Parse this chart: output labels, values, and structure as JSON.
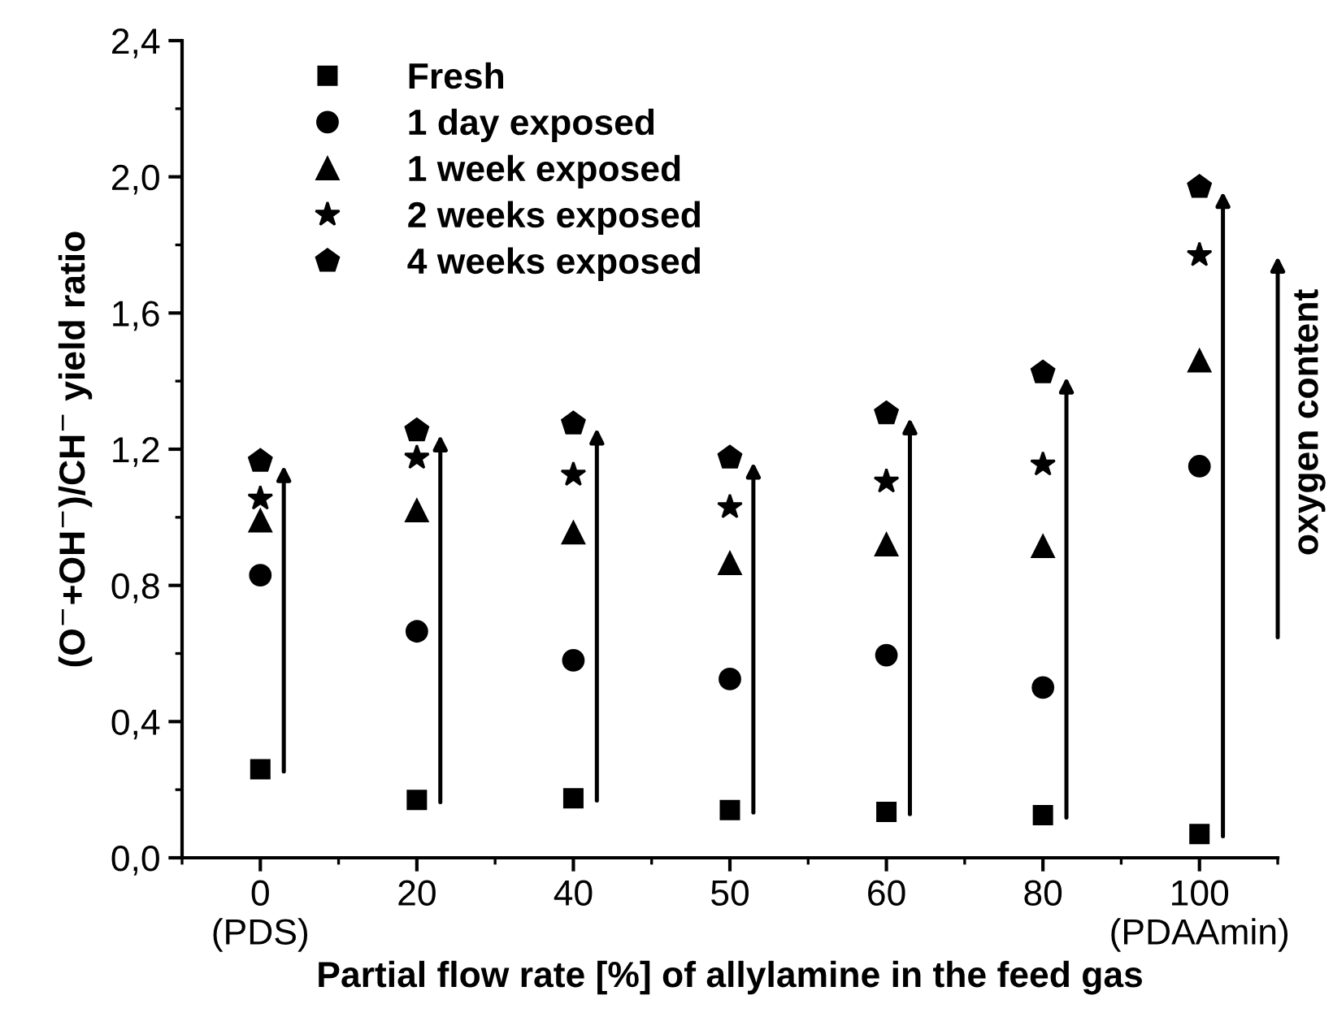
{
  "chart_data": {
    "type": "scatter",
    "xlabel": "Partial flow rate [%] of allylamine in the feed gas",
    "ylabel": "(O$^{−}$+OH$^{−}$)/CH$^{−}$ yield ratio",
    "categories": [
      "0\n(PDS)",
      "20",
      "40",
      "50",
      "60",
      "80",
      "100\n(PDAAmin)"
    ],
    "series": [
      {
        "name": "Fresh",
        "color": "#000000",
        "marker": "square",
        "values": [
          0.26,
          0.17,
          0.175,
          0.14,
          0.135,
          0.125,
          0.07
        ]
      },
      {
        "name": "1 day exposed",
        "color": "#000000",
        "marker": "circle",
        "values": [
          0.83,
          0.665,
          0.58,
          0.525,
          0.595,
          0.5,
          1.15
        ]
      },
      {
        "name": "1 week exposed",
        "color": "#000000",
        "marker": "triangle",
        "values": [
          0.99,
          1.02,
          0.955,
          0.865,
          0.92,
          0.915,
          1.46
        ]
      },
      {
        "name": "2 weeks exposed",
        "color": "#000000",
        "marker": "star",
        "values": [
          1.055,
          1.175,
          1.125,
          1.03,
          1.105,
          1.155,
          1.77
        ]
      },
      {
        "name": "4 weeks exposed",
        "color": "#000000",
        "values": [
          1.165,
          1.255,
          1.275,
          1.175,
          1.305,
          1.425,
          1.97
        ]
      }
    ],
    "ylim": [
      0,
      2.4
    ],
    "yticks": [
      {
        "value": 0,
        "label": "0,0"
      },
      {
        "value": 0.4,
        "label": "0,4"
      },
      {
        "value": 0.8,
        "label": "0,8"
      },
      {
        "value": 1.2,
        "label": "1,2"
      },
      {
        "value": 1.6,
        "label": "1,6"
      },
      {
        "value": 2.0,
        "label": "2,0"
      },
      {
        "value": 2.4,
        "label": "2,4"
      }
    ],
    "annotations": [
      "oxygen content"
    ],
    "grid": false,
    "legend": "top left"
  }
}
